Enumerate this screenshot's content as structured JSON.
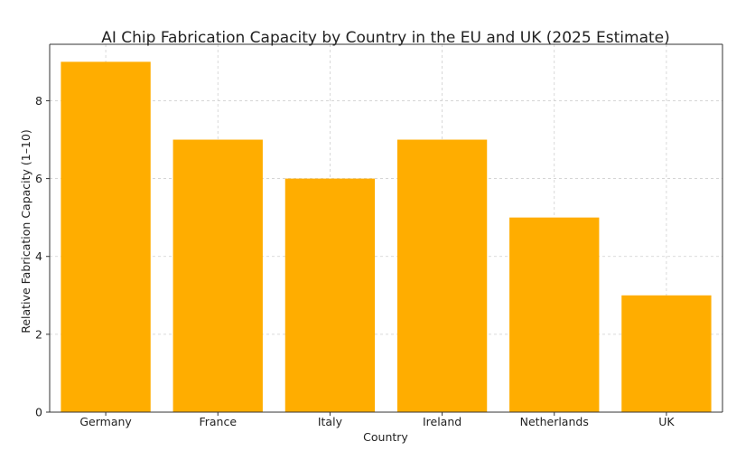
{
  "chart_data": {
    "type": "bar",
    "title": "AI Chip Fabrication Capacity by Country in the EU and UK (2025 Estimate)",
    "xlabel": "Country",
    "ylabel": "Relative Fabrication Capacity (1–10)",
    "categories": [
      "Germany",
      "France",
      "Italy",
      "Ireland",
      "Netherlands",
      "UK"
    ],
    "values": [
      9,
      7,
      6,
      7,
      5,
      3
    ],
    "ylim": [
      0,
      9.45
    ],
    "yticks": [
      0,
      2,
      4,
      6,
      8
    ],
    "bar_color": "#ffad00",
    "grid": true
  }
}
